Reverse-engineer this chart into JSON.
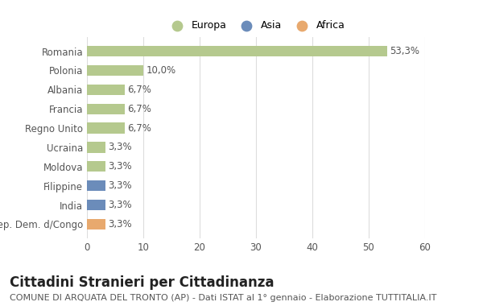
{
  "countries": [
    "Romania",
    "Polonia",
    "Albania",
    "Francia",
    "Regno Unito",
    "Ucraina",
    "Moldova",
    "Filippine",
    "India",
    "Rep. Dem. d/Congo"
  ],
  "values": [
    53.3,
    10.0,
    6.7,
    6.7,
    6.7,
    3.3,
    3.3,
    3.3,
    3.3,
    3.3
  ],
  "labels": [
    "53,3%",
    "10,0%",
    "6,7%",
    "6,7%",
    "6,7%",
    "3,3%",
    "3,3%",
    "3,3%",
    "3,3%",
    "3,3%"
  ],
  "bar_colors": [
    "#b5c98e",
    "#b5c98e",
    "#b5c98e",
    "#b5c98e",
    "#b5c98e",
    "#b5c98e",
    "#b5c98e",
    "#6b8cba",
    "#6b8cba",
    "#e8a96e"
  ],
  "legend_labels": [
    "Europa",
    "Asia",
    "Africa"
  ],
  "legend_colors": [
    "#b5c98e",
    "#6b8cba",
    "#e8a96e"
  ],
  "title": "Cittadini Stranieri per Cittadinanza",
  "subtitle": "COMUNE DI ARQUATA DEL TRONTO (AP) - Dati ISTAT al 1° gennaio - Elaborazione TUTTITALIA.IT",
  "xlim": [
    0,
    60
  ],
  "xticks": [
    0,
    10,
    20,
    30,
    40,
    50,
    60
  ],
  "background_color": "#ffffff",
  "grid_color": "#dddddd",
  "label_fontsize": 8.5,
  "tick_fontsize": 8.5,
  "title_fontsize": 12,
  "subtitle_fontsize": 8
}
